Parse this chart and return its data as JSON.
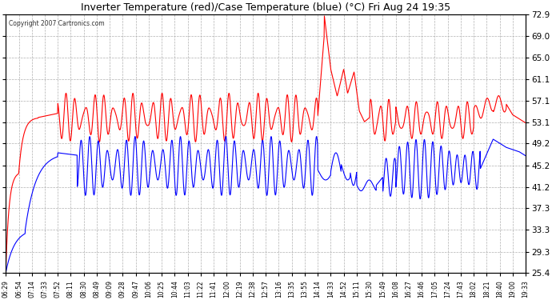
{
  "title": "Inverter Temperature (red)/Case Temperature (blue) (°C) Fri Aug 24 19:35",
  "copyright": "Copyright 2007 Cartronics.com",
  "yticks": [
    25.4,
    29.3,
    33.3,
    37.3,
    41.2,
    45.2,
    49.2,
    53.1,
    57.1,
    61.1,
    65.0,
    69.0,
    72.9
  ],
  "ymin": 25.4,
  "ymax": 72.9,
  "red_color": "#ff0000",
  "blue_color": "#0000ff",
  "bg_color": "#ffffff",
  "grid_color": "#b0b0b0",
  "xtick_labels": [
    "06:29",
    "06:54",
    "07:14",
    "07:33",
    "07:52",
    "08:11",
    "08:30",
    "08:49",
    "09:09",
    "09:28",
    "09:47",
    "10:06",
    "10:25",
    "10:44",
    "11:03",
    "11:22",
    "11:41",
    "12:00",
    "12:19",
    "12:38",
    "12:57",
    "13:16",
    "13:35",
    "13:55",
    "14:14",
    "14:33",
    "14:52",
    "15:11",
    "15:30",
    "15:49",
    "16:08",
    "16:27",
    "16:46",
    "17:05",
    "17:24",
    "17:43",
    "18:02",
    "18:21",
    "18:40",
    "19:00",
    "19:33"
  ],
  "figsize": [
    6.9,
    3.75
  ],
  "dpi": 100
}
